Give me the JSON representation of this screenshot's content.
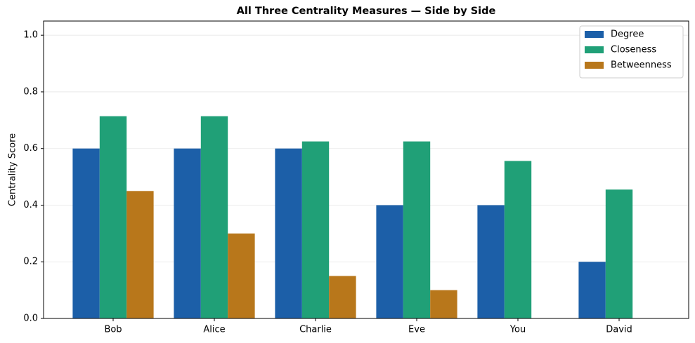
{
  "chart_data": {
    "type": "bar",
    "title": "All Three Centrality Measures — Side by Side",
    "y_label": "Centrality Score",
    "categories": [
      "Bob",
      "Alice",
      "Charlie",
      "Eve",
      "You",
      "David"
    ],
    "series": [
      {
        "name": "Degree",
        "color": "#1c5fa8",
        "values": [
          0.6,
          0.6,
          0.6,
          0.4,
          0.4,
          0.2
        ]
      },
      {
        "name": "Closeness",
        "color": "#20a077",
        "values": [
          0.714,
          0.714,
          0.625,
          0.625,
          0.556,
          0.455
        ]
      },
      {
        "name": "Betweenness",
        "color": "#b8771b",
        "values": [
          0.45,
          0.3,
          0.15,
          0.1,
          0,
          0
        ]
      }
    ],
    "ylim": [
      0,
      1.05
    ],
    "yticks": [
      {
        "value": 0,
        "label": "0.0"
      },
      0.2,
      0.4,
      0.6,
      0.8,
      {
        "value": 1,
        "label": "1.0"
      }
    ],
    "grid": true,
    "legend": "upper-right"
  }
}
